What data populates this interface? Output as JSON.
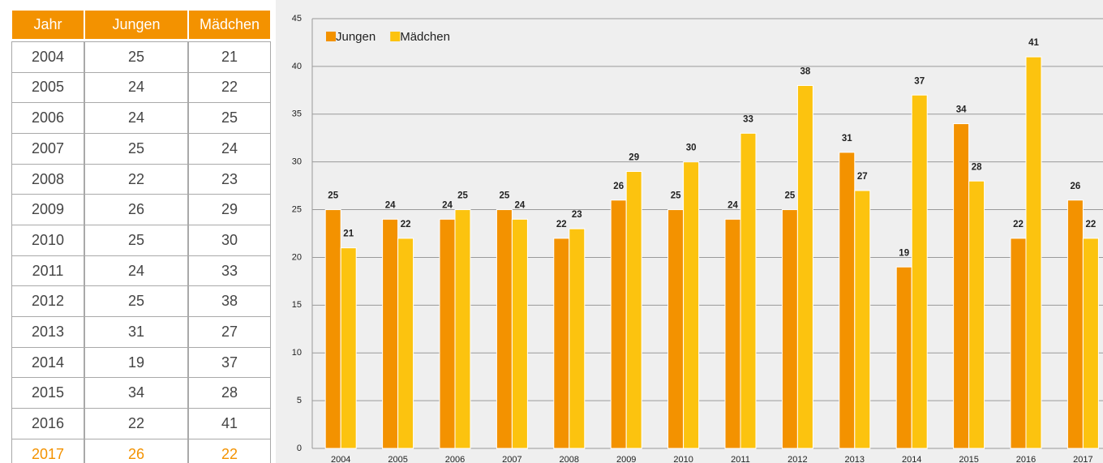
{
  "table": {
    "header": "Jahr"
  },
  "chart_data": {
    "type": "bar",
    "categories": [
      "2004",
      "2005",
      "2006",
      "2007",
      "2008",
      "2009",
      "2010",
      "2011",
      "2012",
      "2013",
      "2014",
      "2015",
      "2016",
      "2017"
    ],
    "series": [
      {
        "name": "Jungen",
        "color": "#f39200",
        "values": [
          25,
          24,
          24,
          25,
          22,
          26,
          25,
          24,
          25,
          31,
          19,
          34,
          22,
          26
        ]
      },
      {
        "name": "Mädchen",
        "color": "#fcc30f",
        "values": [
          21,
          22,
          25,
          24,
          23,
          29,
          30,
          33,
          38,
          27,
          37,
          28,
          41,
          22
        ]
      }
    ],
    "ylim": [
      0,
      45
    ],
    "yticks": [
      0,
      5,
      10,
      15,
      20,
      25,
      30,
      35,
      40,
      45
    ],
    "grid": true,
    "legend": "top-left"
  }
}
